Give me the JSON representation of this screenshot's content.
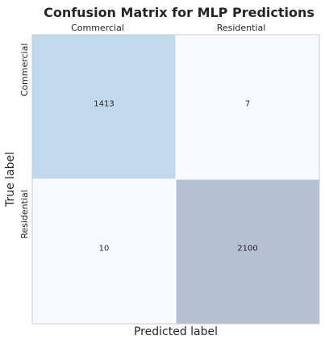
{
  "chart_data": {
    "type": "heatmap",
    "title": "Confusion Matrix for MLP Predictions",
    "xlabel": "Predicted label",
    "ylabel": "True label",
    "x_categories": [
      "Commercial",
      "Residential"
    ],
    "y_categories": [
      "Commercial",
      "Residential"
    ],
    "values": [
      [
        1413,
        7
      ],
      [
        10,
        2100
      ]
    ],
    "cell_colors": [
      [
        "#c1d9ed",
        "#f7fbff"
      ],
      [
        "#f7fbff",
        "#b6c1d3"
      ]
    ],
    "x_tick_position": "top",
    "grid": false
  }
}
